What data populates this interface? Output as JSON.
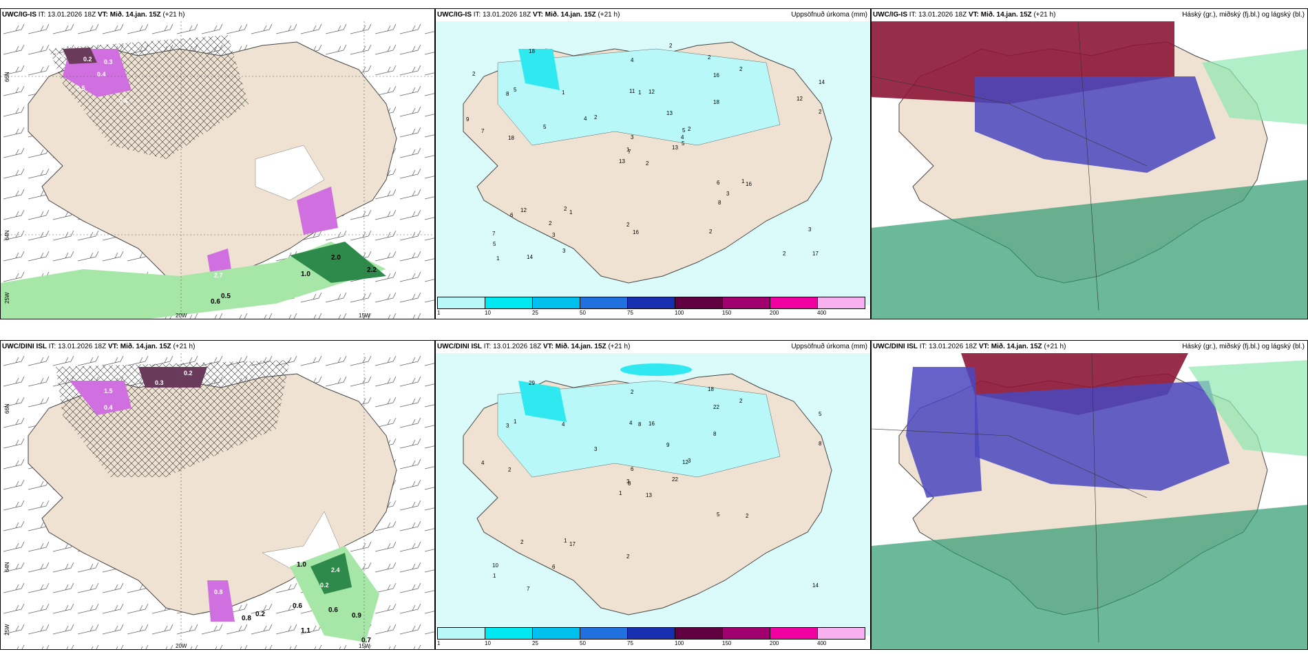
{
  "colors": {
    "land": "#efe2d2",
    "precip_light": "#b8f8f8",
    "precip_mid": "#30e8f0",
    "snow_purple": "#d070e0",
    "dark_purple": "#6a3a5a",
    "green": "#a6e6a6",
    "dark_green": "#2e8a4a",
    "cloud_high": "#8c1636",
    "cloud_mid": "#4a48c0",
    "cloud_low": "#2e9a70"
  },
  "rows": [
    {
      "wind_panel": {
        "title_model": "UWC/IG-IS",
        "title_it": "IT: 13.01.2026 18Z",
        "title_vt": "VT: Mið. 14.jan. 15Z",
        "title_lead": "(+21 h)",
        "lat_labels": [
          "66N",
          "64N",
          "25W"
        ],
        "lon_labels": [
          "20W",
          "15W"
        ],
        "values": [
          "0.2",
          "0.2",
          "0.3",
          "0.4",
          "0.5",
          "0.6",
          "2.7",
          "0.6",
          "0.5",
          "1.0",
          "2.0",
          "2.2"
        ]
      },
      "precip_panel": {
        "title_model": "UWC/IG-IS",
        "title_it": "IT: 13.01.2026 18Z",
        "title_vt": "VT: Mið. 14.jan. 15Z",
        "title_lead": "(+21 h)",
        "field_label": "Uppsöfnuð úrkoma (mm)",
        "lat_label": "66N",
        "values": [
          "2",
          "8",
          "7",
          "7",
          "5",
          "1",
          "2",
          "12",
          "16",
          "13",
          "18",
          "17",
          "18",
          "14",
          "13",
          "18",
          "14",
          "11",
          "13",
          "12",
          "2",
          "5",
          "3",
          "1",
          "2",
          "16",
          "5",
          "4",
          "7",
          "6",
          "2",
          "1",
          "2",
          "3",
          "1",
          "2",
          "2",
          "2",
          "3",
          "1",
          "2",
          "4",
          "5",
          "8",
          "3",
          "9",
          "4",
          "1",
          "16",
          "5",
          "6",
          "12",
          "2",
          "3",
          "2",
          "2"
        ]
      },
      "cloud_panel": {
        "title_model": "UWC/IG-IS",
        "title_it": "IT: 13.01.2026 18Z",
        "title_vt": "VT: Mið. 14.jan. 15Z",
        "title_lead": "(+21 h)",
        "field_label": "Háský (gr.), miðský (fj.bl.) og lágský (bl.)"
      }
    },
    {
      "wind_panel": {
        "title_model": "UWC/DINI ISL",
        "title_it": "IT: 13.01.2026 18Z",
        "title_vt": "VT: Mið. 14.jan. 15Z",
        "title_lead": "(+21 h)",
        "lat_labels": [
          "66N",
          "64N",
          "25W"
        ],
        "lon_labels": [
          "20W",
          "15W"
        ],
        "values": [
          "0.2",
          "0.3",
          "1.5",
          "0.4",
          "0.8",
          "2.4",
          "0.2",
          "1.0",
          "0.6",
          "0.6",
          "0.9",
          "0.7",
          "1.1",
          "0.2",
          "0.8"
        ]
      },
      "precip_panel": {
        "title_model": "UWC/DINI ISL",
        "title_it": "IT: 13.01.2026 18Z",
        "title_vt": "VT: Mið. 14.jan. 15Z",
        "title_lead": "(+21 h)",
        "field_label": "Uppsöfnuð úrkoma (mm)",
        "lat_label": "66N",
        "values": [
          "13",
          "3",
          "8",
          "10",
          "12",
          "17",
          "18",
          "16",
          "22",
          "22",
          "29",
          "14",
          "2",
          "5",
          "1",
          "8",
          "7",
          "4",
          "9",
          "2",
          "3",
          "1",
          "6",
          "8",
          "3",
          "2",
          "1",
          "2",
          "4",
          "5",
          "8",
          "3",
          "2",
          "6",
          "4",
          "2",
          "1"
        ]
      },
      "cloud_panel": {
        "title_model": "UWC/DINI ISL",
        "title_it": "IT: 13.01.2026 18Z",
        "title_vt": "VT: Mið. 14.jan. 15Z",
        "title_lead": "(+21 h)",
        "field_label": "Háský (gr.), miðský (fj.bl.) og lágský (bl.)"
      }
    }
  ],
  "colorbar": {
    "labels": [
      "1",
      "10",
      "25",
      "50",
      "75",
      "100",
      "150",
      "200",
      "400"
    ],
    "colors": [
      "#b8f8f8",
      "#00e8f0",
      "#00c0f0",
      "#2070e0",
      "#1830b0",
      "#600040",
      "#a00070",
      "#f000a0",
      "#f8b0f0"
    ]
  }
}
